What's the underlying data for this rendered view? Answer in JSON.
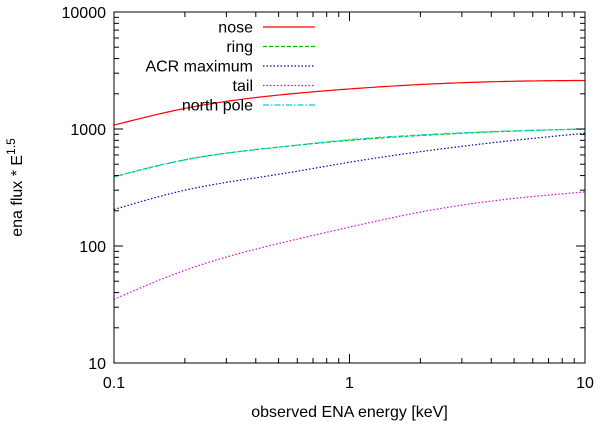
{
  "chart_data": {
    "type": "line",
    "title": "",
    "xlabel": "observed ENA energy [keV]",
    "ylabel": "ena flux * E",
    "ylabel_superscript": "1.5",
    "x_scale": "log",
    "y_scale": "log",
    "xlim": [
      0.1,
      10
    ],
    "ylim": [
      10,
      10000
    ],
    "x_ticks": [
      0.1,
      1,
      10
    ],
    "x_tick_labels": [
      "0.1",
      "1",
      "10"
    ],
    "y_ticks": [
      10,
      100,
      1000,
      10000
    ],
    "y_tick_labels": [
      "10",
      "100",
      "1000",
      "10000"
    ],
    "grid": false,
    "legend_position": "top-left",
    "x": [
      0.1,
      0.2,
      0.5,
      1,
      2,
      5,
      10
    ],
    "series": [
      {
        "name": "nose",
        "color": "#ff0000",
        "dash": "solid",
        "values": [
          1080,
          1500,
          1950,
          2200,
          2400,
          2560,
          2600
        ]
      },
      {
        "name": "ring",
        "color": "#00c000",
        "dash": "dashed",
        "values": [
          390,
          545,
          700,
          800,
          880,
          960,
          1000
        ]
      },
      {
        "name": "ACR maximum",
        "color": "#0000b0",
        "dash": "dotted",
        "values": [
          205,
          300,
          410,
          520,
          640,
          800,
          920
        ]
      },
      {
        "name": "tail",
        "color": "#e000e0",
        "dash": "dotted",
        "values": [
          35,
          62,
          105,
          145,
          195,
          255,
          290
        ]
      },
      {
        "name": "north pole",
        "color": "#00d0d0",
        "dash": "dashdot",
        "values": [
          390,
          545,
          700,
          810,
          890,
          965,
          1000
        ]
      }
    ]
  }
}
